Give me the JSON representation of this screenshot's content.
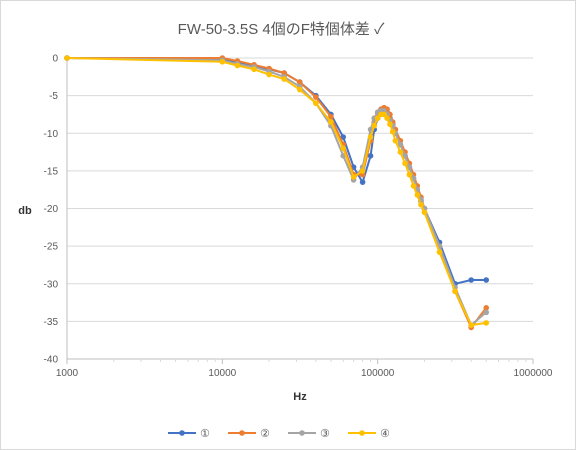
{
  "chart_data": {
    "type": "line",
    "title": "FW-50-3.5S 4個のF特個体差 ✓",
    "xlabel": "Hz",
    "ylabel": "db",
    "x_scale": "log",
    "xlim": [
      1000,
      1000000
    ],
    "ylim": [
      -40,
      0
    ],
    "x_ticks": [
      "1000",
      "10000",
      "100000",
      "1000000"
    ],
    "y_ticks": [
      "0",
      "-5",
      "-10",
      "-15",
      "-20",
      "-25",
      "-30",
      "-35",
      "-40"
    ],
    "grid": "horizontal",
    "legend_position": "bottom",
    "series": [
      {
        "name": "①",
        "color": "#4472C4",
        "x": [
          1000,
          10000,
          12500,
          16000,
          20000,
          25000,
          31500,
          40000,
          50000,
          60000,
          70000,
          80000,
          90000,
          95000,
          100000,
          105000,
          110000,
          115000,
          120000,
          125000,
          130000,
          140000,
          150000,
          160000,
          170000,
          180000,
          190000,
          200000,
          250000,
          315000,
          400000,
          500000
        ],
        "values": [
          0,
          -0.2,
          -0.5,
          -1.0,
          -1.5,
          -2.0,
          -3.2,
          -5.0,
          -7.5,
          -10.5,
          -14.5,
          -16.5,
          -13.0,
          -9.5,
          -8.0,
          -7.0,
          -7.0,
          -7.2,
          -8.0,
          -8.8,
          -9.5,
          -11.5,
          -13.0,
          -14.5,
          -16.0,
          -17.5,
          -19.0,
          -20.0,
          -24.5,
          -30.0,
          -29.5,
          -29.5
        ]
      },
      {
        "name": "②",
        "color": "#ED7D31",
        "x": [
          1000,
          10000,
          12500,
          16000,
          20000,
          25000,
          31500,
          40000,
          50000,
          60000,
          70000,
          80000,
          90000,
          95000,
          100000,
          105000,
          110000,
          115000,
          120000,
          125000,
          130000,
          140000,
          150000,
          160000,
          170000,
          180000,
          190000,
          200000,
          250000,
          315000,
          400000,
          500000
        ],
        "values": [
          0,
          0,
          -0.4,
          -0.9,
          -1.4,
          -2.0,
          -3.2,
          -5.2,
          -7.8,
          -11.5,
          -15.5,
          -15.5,
          -11.0,
          -8.5,
          -7.3,
          -6.8,
          -6.6,
          -6.8,
          -7.5,
          -8.5,
          -9.5,
          -11.0,
          -12.5,
          -14.0,
          -15.5,
          -17.0,
          -18.5,
          -20.0,
          -25.0,
          -31.0,
          -35.8,
          -33.2
        ]
      },
      {
        "name": "③",
        "color": "#A5A5A5",
        "x": [
          1000,
          10000,
          12500,
          16000,
          20000,
          25000,
          31500,
          40000,
          50000,
          60000,
          70000,
          80000,
          90000,
          95000,
          100000,
          105000,
          110000,
          115000,
          120000,
          125000,
          130000,
          140000,
          150000,
          160000,
          170000,
          180000,
          190000,
          200000,
          250000,
          315000,
          400000,
          500000
        ],
        "values": [
          0,
          -0.3,
          -0.8,
          -1.2,
          -1.8,
          -2.5,
          -3.8,
          -6.0,
          -9.0,
          -13.0,
          -16.2,
          -14.5,
          -9.5,
          -8.0,
          -7.2,
          -7.0,
          -7.0,
          -7.5,
          -8.3,
          -9.0,
          -10.0,
          -11.5,
          -13.0,
          -14.5,
          -16.0,
          -17.5,
          -18.8,
          -20.0,
          -25.0,
          -30.5,
          -35.5,
          -33.8
        ]
      },
      {
        "name": "④",
        "color": "#FFC000",
        "x": [
          1000,
          10000,
          12500,
          16000,
          20000,
          25000,
          31500,
          40000,
          50000,
          60000,
          70000,
          80000,
          90000,
          95000,
          100000,
          105000,
          110000,
          115000,
          120000,
          125000,
          130000,
          140000,
          150000,
          160000,
          170000,
          180000,
          190000,
          200000,
          250000,
          315000,
          400000,
          500000
        ],
        "values": [
          0,
          -0.5,
          -1.0,
          -1.5,
          -2.2,
          -2.8,
          -4.2,
          -6.0,
          -8.5,
          -12.0,
          -15.8,
          -15.0,
          -10.5,
          -9.0,
          -8.0,
          -7.5,
          -7.5,
          -8.0,
          -8.8,
          -9.8,
          -11.0,
          -12.5,
          -14.0,
          -15.5,
          -17.0,
          -18.2,
          -19.5,
          -20.5,
          -25.8,
          -31.0,
          -35.5,
          -35.2
        ]
      }
    ]
  }
}
